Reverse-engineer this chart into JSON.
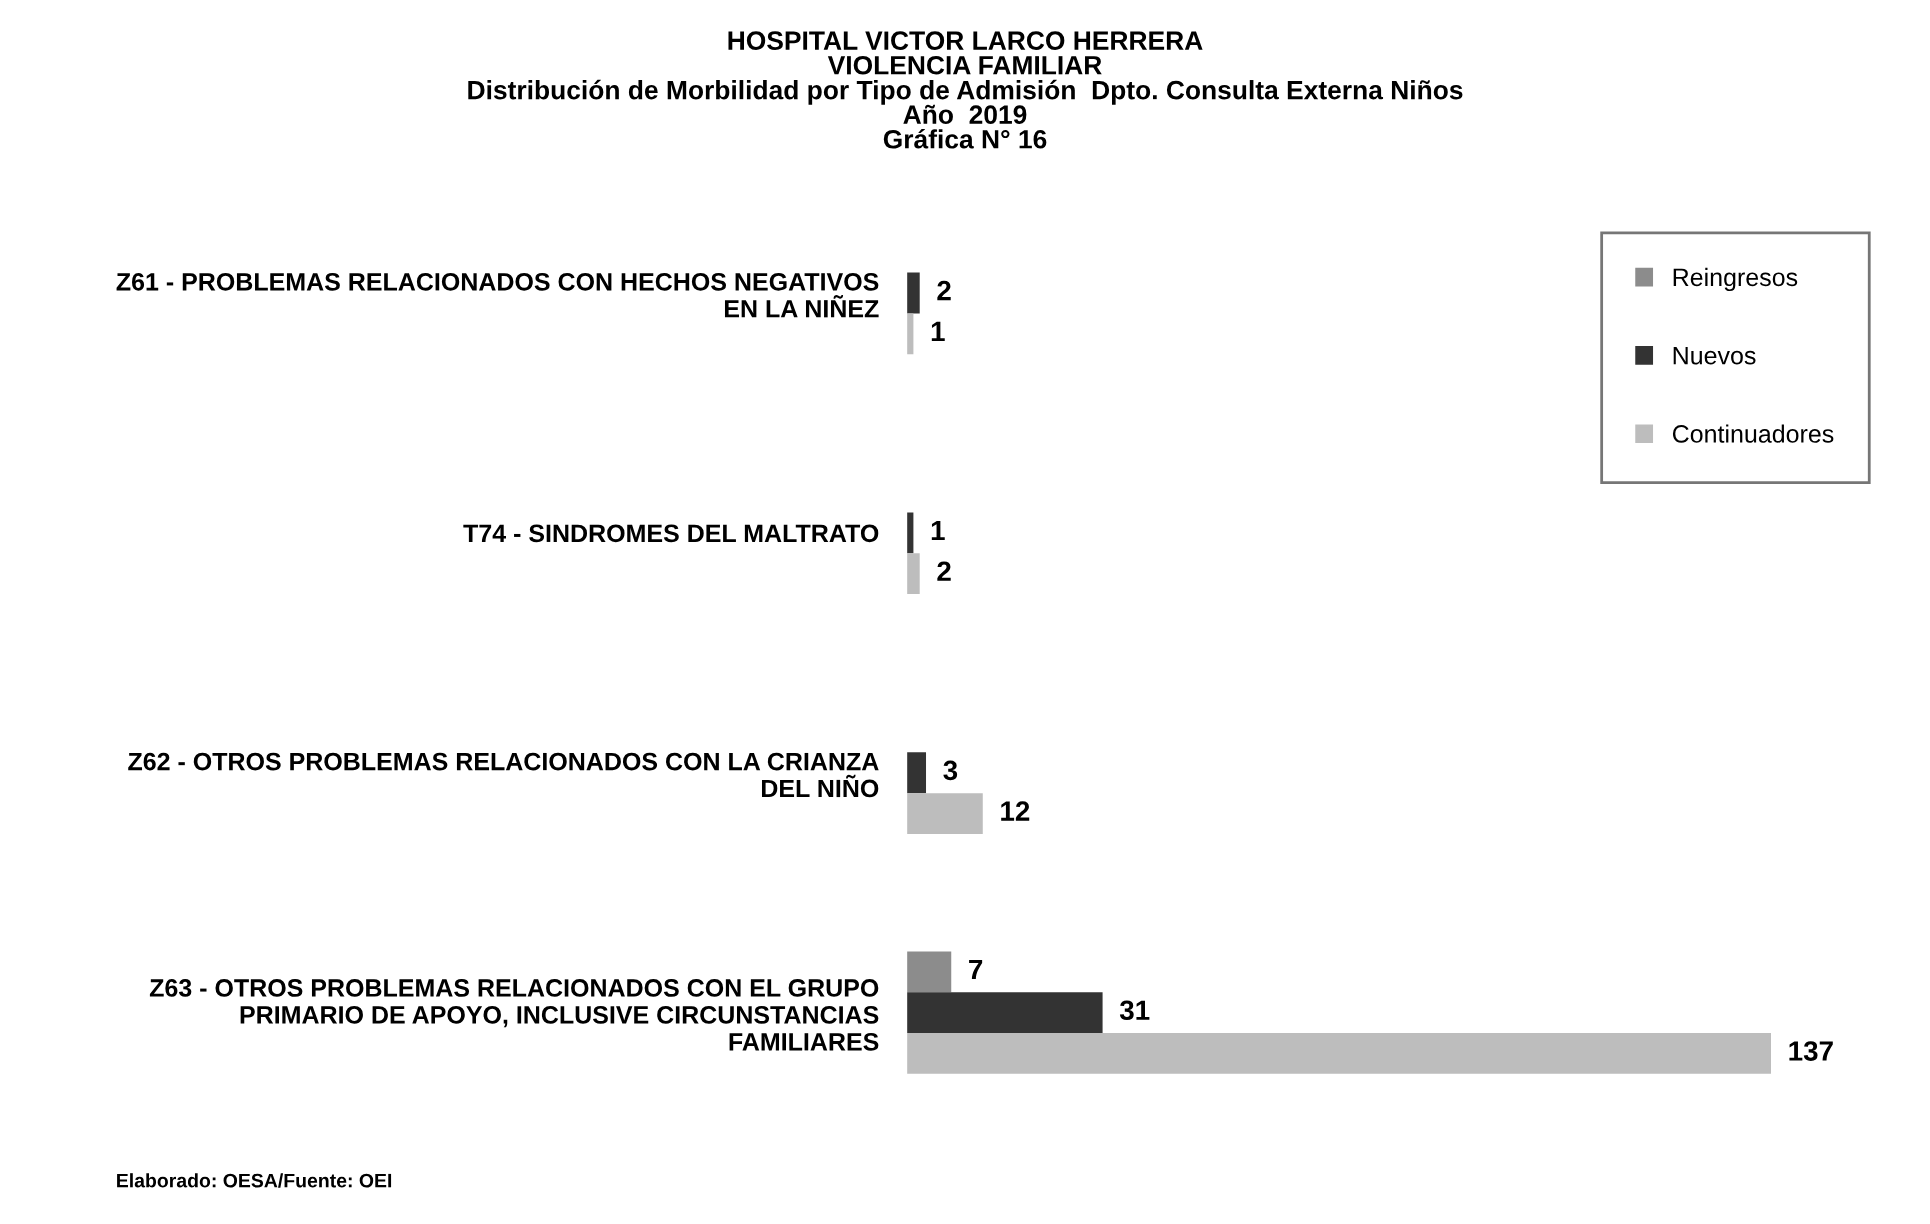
{
  "chart_data": {
    "type": "bar",
    "orientation": "horizontal",
    "title": "HOSPITAL VICTOR LARCO HERRERA\nVIOLENCIA FAMILIAR\nDistribución de Morbilidad por Tipo de Admisión  Dpto. Consulta Externa Niños\nAño  2019\nGráfica N° 16",
    "categories": [
      "Z61 - PROBLEMAS RELACIONADOS CON HECHOS NEGATIVOS\nEN LA NIÑEZ",
      "T74 - SINDROMES DEL MALTRATO",
      "Z62 - OTROS PROBLEMAS RELACIONADOS CON LA CRIANZA\nDEL NIÑO",
      "Z63 - OTROS PROBLEMAS RELACIONADOS CON EL GRUPO\nPRIMARIO DE APOYO, INCLUSIVE CIRCUNSTANCIAS\nFAMILIARES"
    ],
    "series": [
      {
        "name": "Reingresos",
        "color": "#8c8c8c",
        "values": [
          null,
          null,
          null,
          7
        ]
      },
      {
        "name": "Nuevos",
        "color": "#333333",
        "values": [
          2,
          1,
          3,
          31
        ]
      },
      {
        "name": "Continuadores",
        "color": "#bdbdbd",
        "values": [
          1,
          2,
          12,
          137
        ]
      }
    ],
    "data_labels": true,
    "legend": "top right",
    "grid": false,
    "tick_labels": "y",
    "annotations": [
      "Elaborado: OESA/Fuente: OEI"
    ]
  }
}
